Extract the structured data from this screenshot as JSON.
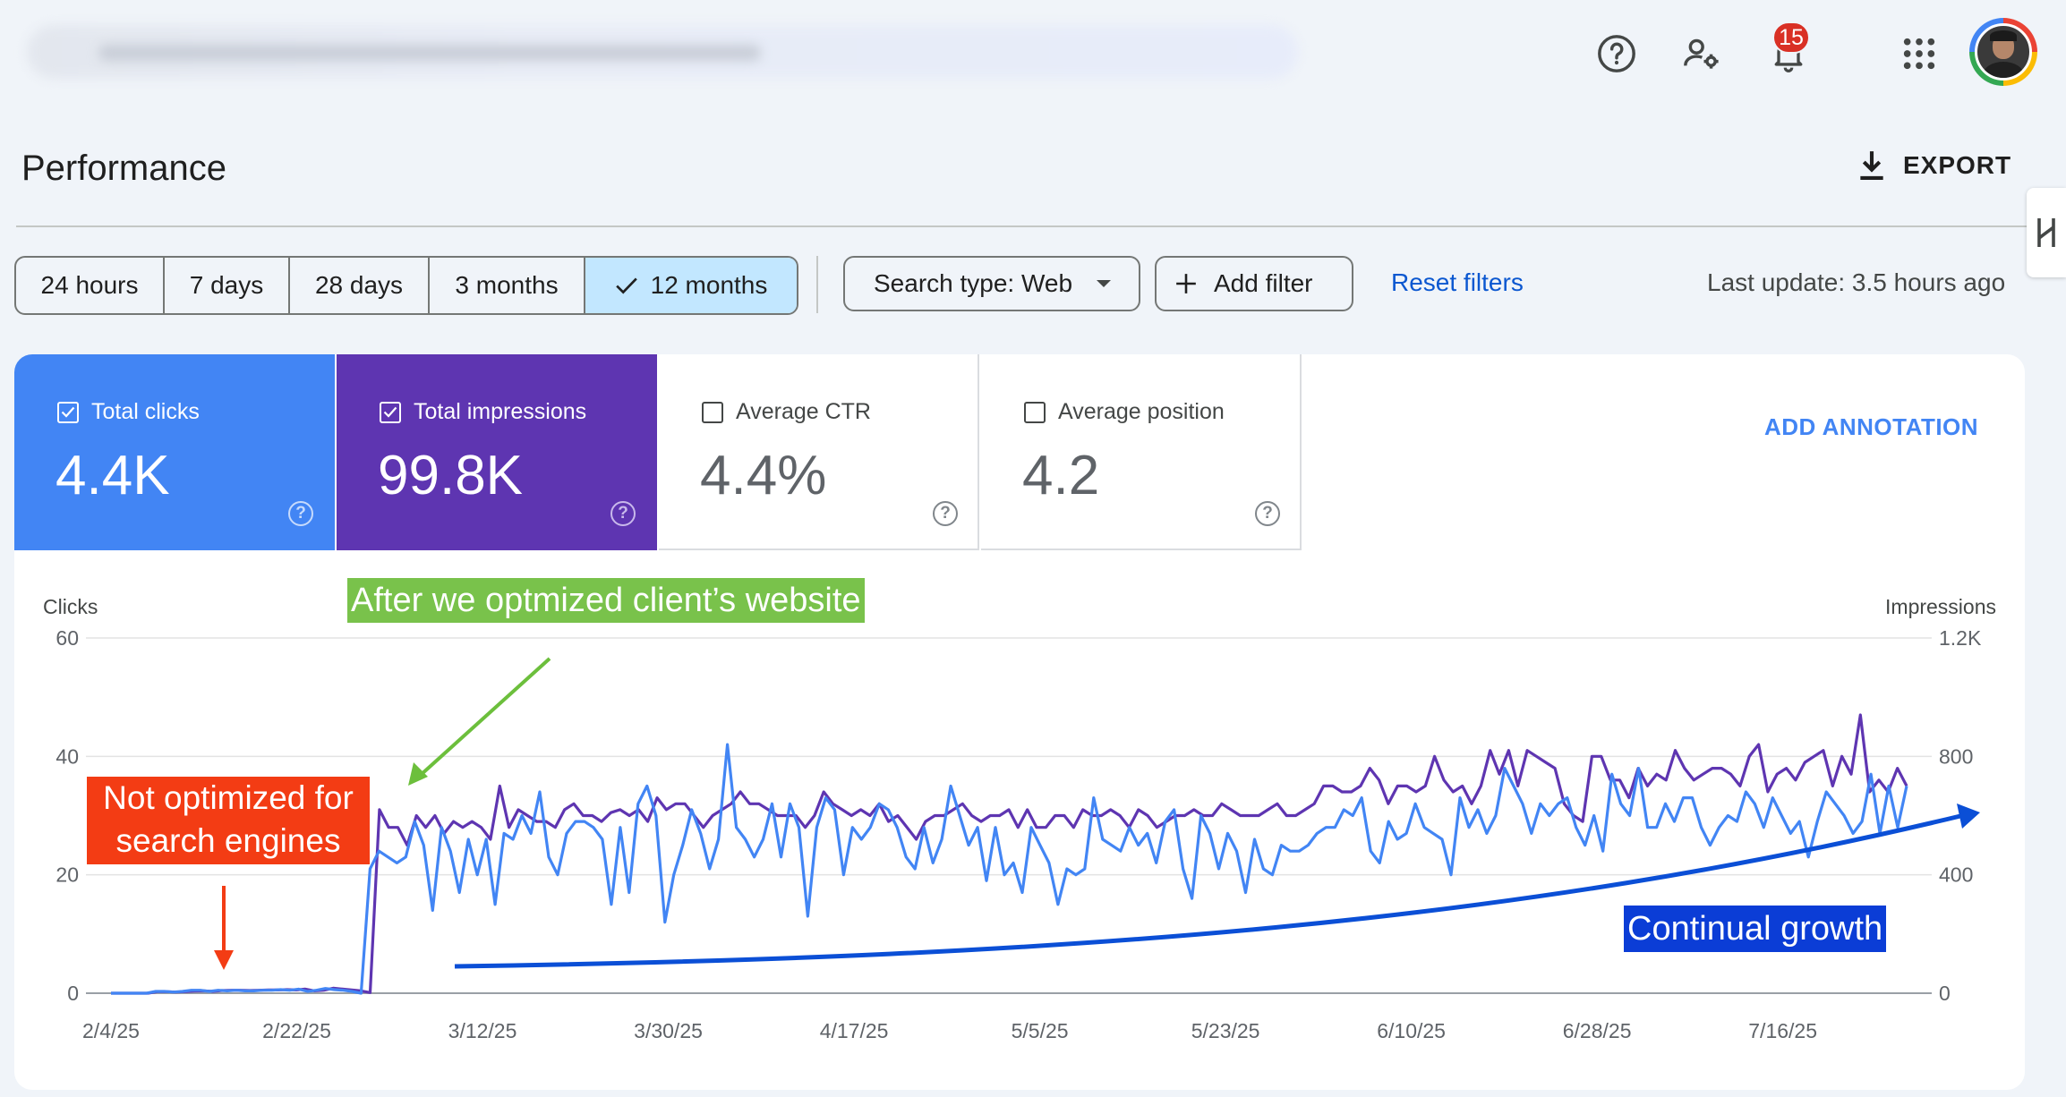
{
  "header": {
    "notification_count": "15",
    "icons": [
      "help-icon",
      "manage-users-icon",
      "notifications-icon",
      "apps-grid-icon"
    ]
  },
  "page": {
    "title": "Performance",
    "export_label": "EXPORT"
  },
  "filters": {
    "date_ranges": [
      "24 hours",
      "7 days",
      "28 days",
      "3 months",
      "12 months"
    ],
    "selected_range": "12 months",
    "search_type": "Search type: Web",
    "add_filter": "Add filter",
    "reset": "Reset filters",
    "last_update": "Last update: 3.5 hours ago"
  },
  "metrics": [
    {
      "label": "Total clicks",
      "value": "4.4K",
      "checked": true,
      "color": "#4285f4"
    },
    {
      "label": "Total impressions",
      "value": "99.8K",
      "checked": true,
      "color": "#5e35b1"
    },
    {
      "label": "Average CTR",
      "value": "4.4%",
      "checked": false,
      "color": "#ffffff"
    },
    {
      "label": "Average position",
      "value": "4.2",
      "checked": false,
      "color": "#ffffff"
    }
  ],
  "add_annotation": "ADD ANNOTATION",
  "annotations": {
    "optimized": "After we optmized client’s website",
    "not_optimized_line1": "Not optimized for",
    "not_optimized_line2": "search engines",
    "growth": "Continual growth"
  },
  "colors": {
    "clicks": "#4285f4",
    "impressions": "#5e35b1",
    "optimized_bg": "#79c24b",
    "not_optimized_bg": "#f33c14",
    "growth_bg": "#0b3dd6"
  },
  "chart_data": {
    "type": "line",
    "ylabel_left": "Clicks",
    "ylabel_right": "Impressions",
    "y_left_ticks": [
      "0",
      "20",
      "40",
      "60"
    ],
    "y_right_ticks": [
      "0",
      "400",
      "800",
      "1.2K"
    ],
    "ylim_left": [
      0,
      60
    ],
    "ylim_right": [
      0,
      1200
    ],
    "x_tick_labels": [
      "2/4/25",
      "2/22/25",
      "3/12/25",
      "3/30/25",
      "4/17/25",
      "5/5/25",
      "5/23/25",
      "6/10/25",
      "6/28/25",
      "7/16/25"
    ],
    "x_start": "2025-02-04",
    "x_end": "2025-07-28",
    "grid": true,
    "series": [
      {
        "name": "Total clicks",
        "axis": "left",
        "values": [
          0,
          0,
          0,
          0,
          0,
          0.3,
          0.3,
          0.2,
          0.3,
          0.5,
          0.5,
          0.3,
          0.5,
          0.4,
          0.5,
          0.4,
          0.4,
          0.5,
          0.5,
          0.6,
          0.5,
          0.7,
          0.3,
          0.5,
          0.8,
          0.6,
          0.5,
          0.3,
          0,
          21,
          24,
          23,
          22,
          23,
          29,
          25,
          14,
          28,
          24,
          17,
          26,
          20,
          26,
          15,
          27,
          26,
          30,
          27,
          34,
          23,
          20,
          27,
          29,
          29,
          28,
          26,
          15,
          28,
          17,
          32,
          35,
          30,
          12,
          20,
          25,
          31,
          27,
          21,
          26,
          42,
          28,
          26,
          23,
          26,
          32,
          23,
          32,
          28,
          13,
          28,
          33,
          31,
          20,
          28,
          26,
          28,
          32,
          31,
          28,
          23,
          21,
          28,
          22,
          26,
          35,
          30,
          25,
          28,
          19,
          28,
          20,
          22,
          17,
          28,
          25,
          22,
          15,
          21,
          20,
          21,
          33,
          26,
          25,
          24,
          28,
          25,
          27,
          22,
          29,
          31,
          21,
          16,
          30,
          27,
          21,
          27,
          24,
          17,
          26,
          21,
          20,
          25,
          24,
          24,
          25,
          27,
          28,
          28,
          31,
          30,
          33,
          24,
          22,
          29,
          26,
          27,
          32,
          28,
          27,
          26,
          20,
          33,
          28,
          31,
          27,
          30,
          38,
          35,
          32,
          27,
          32,
          30,
          32,
          33,
          28,
          25,
          30,
          24,
          37,
          32,
          30,
          38,
          28,
          28,
          32,
          29,
          33,
          33,
          28,
          25,
          28,
          30,
          29,
          34,
          32,
          28,
          33,
          30,
          27,
          29,
          23,
          29,
          34,
          32,
          30,
          27,
          29,
          37,
          27,
          35,
          28,
          35
        ],
        "note": "approximate visual trace"
      },
      {
        "name": "Total impressions",
        "axis": "right",
        "values": [
          0,
          0,
          0,
          0,
          0,
          5,
          5,
          4,
          5,
          7,
          8,
          6,
          9,
          10,
          10,
          9,
          10,
          11,
          11,
          12,
          11,
          14,
          8,
          10,
          17,
          14,
          11,
          8,
          2,
          620,
          560,
          560,
          500,
          600,
          560,
          600,
          540,
          580,
          560,
          580,
          560,
          520,
          700,
          560,
          620,
          600,
          580,
          580,
          560,
          620,
          640,
          600,
          600,
          580,
          610,
          620,
          600,
          620,
          580,
          660,
          620,
          640,
          640,
          600,
          560,
          600,
          620,
          640,
          680,
          640,
          640,
          620,
          600,
          600,
          600,
          560,
          600,
          680,
          640,
          620,
          600,
          620,
          600,
          640,
          580,
          600,
          560,
          520,
          580,
          600,
          600,
          620,
          640,
          600,
          580,
          600,
          600,
          620,
          560,
          620,
          560,
          560,
          600,
          600,
          560,
          620,
          600,
          600,
          620,
          600,
          560,
          620,
          600,
          560,
          580,
          600,
          600,
          620,
          600,
          600,
          640,
          620,
          600,
          600,
          600,
          620,
          640,
          600,
          600,
          620,
          640,
          700,
          700,
          680,
          680,
          700,
          760,
          720,
          640,
          700,
          700,
          680,
          700,
          800,
          720,
          680,
          700,
          640,
          700,
          820,
          740,
          820,
          700,
          820,
          800,
          780,
          760,
          640,
          600,
          580,
          800,
          800,
          720,
          720,
          660,
          760,
          700,
          740,
          720,
          820,
          760,
          720,
          740,
          760,
          760,
          740,
          700,
          800,
          840,
          680,
          740,
          760,
          720,
          780,
          800,
          820,
          700,
          800,
          740,
          940,
          680,
          720,
          680,
          760,
          700
        ]
      }
    ]
  }
}
